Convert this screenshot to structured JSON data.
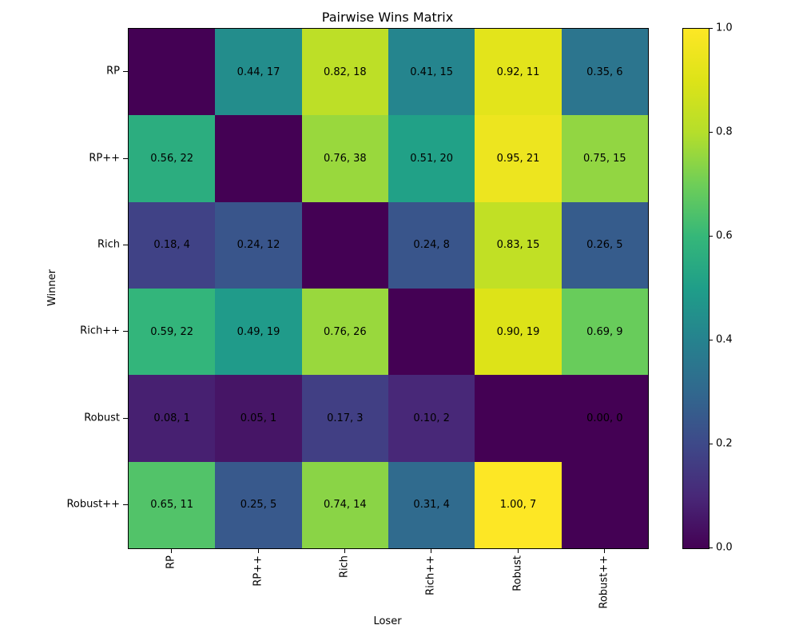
{
  "title": "Pairwise Wins Matrix",
  "chart_data": {
    "type": "heatmap",
    "title": "Pairwise Wins Matrix",
    "xlabel": "Loser",
    "ylabel": "Winner",
    "colormap": "viridis",
    "colormap_stops": [
      "#440154",
      "#482878",
      "#3e4989",
      "#31688e",
      "#26828e",
      "#1f9e89",
      "#35b779",
      "#6ece58",
      "#b5de2b",
      "#dde318",
      "#fde725"
    ],
    "value_range": [
      0,
      1
    ],
    "rows": [
      "RP",
      "RP++",
      "Rich",
      "Rich++",
      "Robust",
      "Robust++"
    ],
    "cols": [
      "RP",
      "RP++",
      "Rich",
      "Rich++",
      "Robust",
      "Robust++"
    ],
    "cells": [
      [
        null,
        {
          "v": 0.44,
          "n": 17
        },
        {
          "v": 0.82,
          "n": 18
        },
        {
          "v": 0.41,
          "n": 15
        },
        {
          "v": 0.92,
          "n": 11
        },
        {
          "v": 0.35,
          "n": 6
        }
      ],
      [
        {
          "v": 0.56,
          "n": 22
        },
        null,
        {
          "v": 0.76,
          "n": 38
        },
        {
          "v": 0.51,
          "n": 20
        },
        {
          "v": 0.95,
          "n": 21
        },
        {
          "v": 0.75,
          "n": 15
        }
      ],
      [
        {
          "v": 0.18,
          "n": 4
        },
        {
          "v": 0.24,
          "n": 12
        },
        null,
        {
          "v": 0.24,
          "n": 8
        },
        {
          "v": 0.83,
          "n": 15
        },
        {
          "v": 0.26,
          "n": 5
        }
      ],
      [
        {
          "v": 0.59,
          "n": 22
        },
        {
          "v": 0.49,
          "n": 19
        },
        {
          "v": 0.76,
          "n": 26
        },
        null,
        {
          "v": 0.9,
          "n": 19
        },
        {
          "v": 0.69,
          "n": 9
        }
      ],
      [
        {
          "v": 0.08,
          "n": 1
        },
        {
          "v": 0.05,
          "n": 1
        },
        {
          "v": 0.17,
          "n": 3
        },
        {
          "v": 0.1,
          "n": 2
        },
        null,
        {
          "v": 0.0,
          "n": 0
        }
      ],
      [
        {
          "v": 0.65,
          "n": 11
        },
        {
          "v": 0.25,
          "n": 5
        },
        {
          "v": 0.74,
          "n": 14
        },
        {
          "v": 0.31,
          "n": 4
        },
        {
          "v": 1.0,
          "n": 7
        },
        null
      ]
    ],
    "diagonal_value": 0,
    "colorbar": {
      "ticks": [
        {
          "v": 0.0,
          "label": "0.0"
        },
        {
          "v": 0.2,
          "label": "0.2"
        },
        {
          "v": 0.4,
          "label": "0.4"
        },
        {
          "v": 0.6,
          "label": "0.6"
        },
        {
          "v": 0.8,
          "label": "0.8"
        },
        {
          "v": 1.0,
          "label": "1.0"
        }
      ]
    }
  }
}
